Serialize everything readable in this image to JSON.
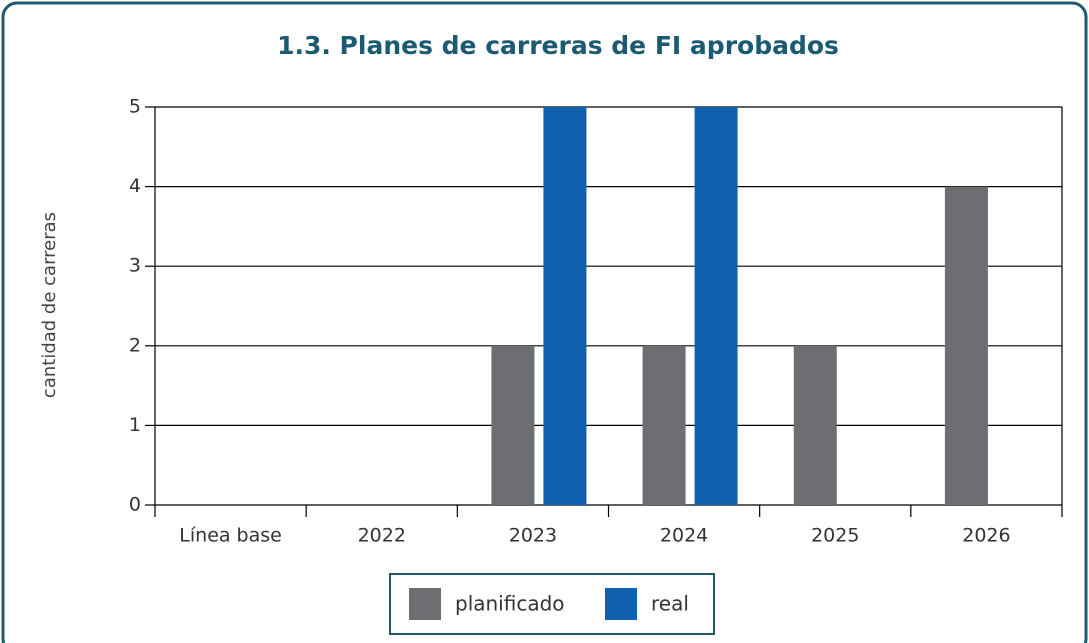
{
  "chart_data": {
    "type": "bar",
    "title": "1.3. Planes de carreras de FI aprobados",
    "ylabel": "cantidad de carreras",
    "categories": [
      "Línea base",
      "2022",
      "2023",
      "2024",
      "2025",
      "2026"
    ],
    "series": [
      {
        "name": "planificado",
        "color": "#6d6e71",
        "values": [
          null,
          null,
          2,
          2,
          2,
          4
        ]
      },
      {
        "name": "real",
        "color": "#1060b0",
        "values": [
          null,
          null,
          5,
          5,
          null,
          null
        ]
      }
    ],
    "ylim": [
      0,
      5
    ],
    "yticks": [
      0,
      1,
      2,
      3,
      4,
      5
    ],
    "grid": true,
    "legend": "bottom"
  }
}
